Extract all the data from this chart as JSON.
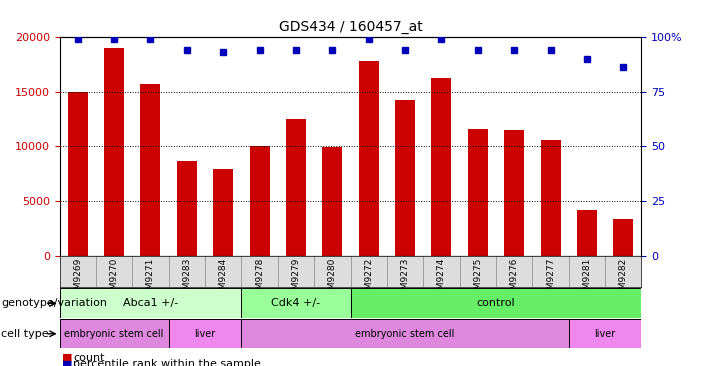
{
  "title": "GDS434 / 160457_at",
  "samples": [
    "GSM9269",
    "GSM9270",
    "GSM9271",
    "GSM9283",
    "GSM9284",
    "GSM9278",
    "GSM9279",
    "GSM9280",
    "GSM9272",
    "GSM9273",
    "GSM9274",
    "GSM9275",
    "GSM9276",
    "GSM9277",
    "GSM9281",
    "GSM9282"
  ],
  "counts": [
    15000,
    19000,
    15700,
    8700,
    7900,
    10000,
    12500,
    9900,
    17800,
    14200,
    16200,
    11600,
    11500,
    10600,
    4200,
    3400
  ],
  "percentiles": [
    99,
    99,
    99,
    94,
    93,
    94,
    94,
    94,
    99,
    94,
    99,
    94,
    94,
    94,
    90,
    86
  ],
  "ylim_left": [
    0,
    20000
  ],
  "ylim_right": [
    0,
    100
  ],
  "yticks_left": [
    0,
    5000,
    10000,
    15000,
    20000
  ],
  "yticks_right": [
    0,
    25,
    50,
    75,
    100
  ],
  "bar_color": "#cc0000",
  "dot_color": "#0000bb",
  "genotype_groups": [
    {
      "label": "Abca1 +/-",
      "start": 0,
      "end": 4,
      "color": "#ccffcc"
    },
    {
      "label": "Cdk4 +/-",
      "start": 5,
      "end": 7,
      "color": "#99ff99"
    },
    {
      "label": "control",
      "start": 8,
      "end": 15,
      "color": "#66ee66"
    }
  ],
  "celltype_groups": [
    {
      "label": "embryonic stem cell",
      "start": 0,
      "end": 2,
      "color": "#dd88dd"
    },
    {
      "label": "liver",
      "start": 3,
      "end": 4,
      "color": "#ee88ee"
    },
    {
      "label": "embryonic stem cell",
      "start": 5,
      "end": 13,
      "color": "#dd88dd"
    },
    {
      "label": "liver",
      "start": 14,
      "end": 15,
      "color": "#ee88ee"
    }
  ],
  "legend_count_label": "count",
  "legend_pct_label": "percentile rank within the sample",
  "genotype_label": "genotype/variation",
  "celltype_label": "cell type"
}
